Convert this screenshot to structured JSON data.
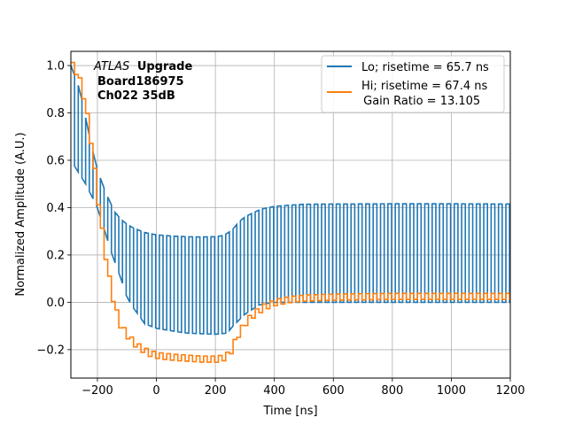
{
  "chart_data": {
    "type": "line",
    "title": "",
    "xlabel": "Time [ns]",
    "ylabel": "Normalized Amplitude (A.U.)",
    "xlim": [
      -290,
      1200
    ],
    "ylim": [
      -0.32,
      1.06
    ],
    "xticks": [
      -200,
      0,
      200,
      400,
      600,
      800,
      1000,
      1200
    ],
    "yticks": [
      -0.2,
      0.0,
      0.2,
      0.4,
      0.6,
      0.8,
      1.0
    ],
    "xtick_labels": [
      "−200",
      "0",
      "200",
      "400",
      "600",
      "800",
      "1000",
      "1200"
    ],
    "ytick_labels": [
      "−0.2",
      "0.0",
      "0.2",
      "0.4",
      "0.6",
      "0.8",
      "1.0"
    ],
    "grid": true,
    "legend_position": "top-right",
    "annotation": {
      "italic": "ATLAS",
      "bold": "Upgrade",
      "line2": "Board186975",
      "line3": "Ch022 35dB"
    },
    "series": [
      {
        "name": "Lo; risetime = 65.7 ns",
        "color": "#1f77b4",
        "style": "toggling between envelope and baseline",
        "toggle_period_ns": 25,
        "baseline_after_x": -80,
        "baseline_value": 0.0,
        "envelope": {
          "x": [
            -290,
            -260,
            -240,
            -220,
            -200,
            -180,
            -160,
            -140,
            -120,
            -100,
            -80,
            -40,
            0,
            50,
            100,
            150,
            200,
            220,
            240,
            260,
            280,
            300,
            330,
            360,
            400,
            450,
            500,
            600,
            800,
            1000,
            1200
          ],
          "y": [
            1.0,
            0.9,
            0.78,
            0.66,
            0.56,
            0.49,
            0.43,
            0.38,
            0.35,
            0.33,
            0.315,
            0.295,
            0.285,
            0.28,
            0.277,
            0.276,
            0.277,
            0.28,
            0.29,
            0.31,
            0.34,
            0.36,
            0.38,
            0.395,
            0.405,
            0.41,
            0.414,
            0.415,
            0.416,
            0.416,
            0.415
          ]
        },
        "low": {
          "x": [
            -290,
            -240,
            -200,
            -150,
            -120,
            -100,
            -80,
            -40,
            0,
            100,
            200,
            240,
            260,
            300,
            350,
            400,
            500,
            600,
            1200
          ],
          "y": [
            0.6,
            0.5,
            0.4,
            0.2,
            0.1,
            0.02,
            -0.02,
            -0.09,
            -0.11,
            -0.13,
            -0.135,
            -0.13,
            -0.1,
            -0.05,
            -0.01,
            0.0,
            0.0,
            0.0,
            0.0
          ]
        }
      },
      {
        "name": "Hi; risetime = 67.4 ns",
        "name_line2": " Gain Ratio = 13.105",
        "color": "#ff7f0e",
        "style": "ripple around trend",
        "ripple_period_ns": 25,
        "ripple_amplitude": 0.013,
        "trend": {
          "x": [
            -290,
            -270,
            -250,
            -230,
            -210,
            -190,
            -170,
            -150,
            -130,
            -110,
            -90,
            -70,
            -50,
            -30,
            0,
            50,
            100,
            150,
            200,
            230,
            250,
            270,
            300,
            330,
            360,
            400,
            450,
            500,
            600,
            800,
            1000,
            1200
          ],
          "y": [
            1.0,
            0.96,
            0.86,
            0.71,
            0.5,
            0.3,
            0.13,
            0.0,
            -0.09,
            -0.13,
            -0.16,
            -0.185,
            -0.2,
            -0.215,
            -0.225,
            -0.232,
            -0.236,
            -0.24,
            -0.24,
            -0.232,
            -0.2,
            -0.14,
            -0.08,
            -0.045,
            -0.02,
            0.0,
            0.012,
            0.018,
            0.022,
            0.025,
            0.025,
            0.025
          ]
        }
      }
    ]
  }
}
